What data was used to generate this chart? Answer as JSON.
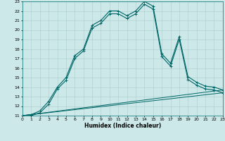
{
  "xlabel": "Humidex (Indice chaleur)",
  "bg_color": "#cce8e8",
  "line_color": "#006666",
  "grid_color": "#aacccc",
  "xlim": [
    0,
    23
  ],
  "ylim": [
    11,
    23
  ],
  "xticks": [
    0,
    1,
    2,
    3,
    4,
    5,
    6,
    7,
    8,
    9,
    10,
    11,
    12,
    13,
    14,
    15,
    16,
    17,
    18,
    19,
    20,
    21,
    22,
    23
  ],
  "yticks": [
    11,
    12,
    13,
    14,
    15,
    16,
    17,
    18,
    19,
    20,
    21,
    22,
    23
  ],
  "line1_x": [
    0,
    1,
    2,
    3,
    4,
    5,
    6,
    7,
    8,
    9,
    10,
    11,
    12,
    13,
    14,
    15,
    16,
    17,
    18,
    19,
    20,
    21,
    22,
    23
  ],
  "line1_y": [
    11,
    11.1,
    11.5,
    12.5,
    14.0,
    15.0,
    17.3,
    18.0,
    20.5,
    21.0,
    22.0,
    22.0,
    21.5,
    22.0,
    23.0,
    22.5,
    17.5,
    16.5,
    19.3,
    15.1,
    14.5,
    14.1,
    14.0,
    13.7
  ],
  "line2_x": [
    0,
    1,
    2,
    3,
    4,
    5,
    6,
    7,
    8,
    9,
    10,
    11,
    12,
    13,
    14,
    15,
    16,
    17,
    18,
    19,
    20,
    21,
    22,
    23
  ],
  "line2_y": [
    11,
    11.0,
    11.3,
    12.2,
    13.8,
    14.7,
    17.0,
    17.8,
    20.2,
    20.7,
    21.7,
    21.7,
    21.2,
    21.7,
    22.7,
    22.2,
    17.2,
    16.2,
    19.0,
    14.8,
    14.2,
    13.8,
    13.7,
    13.4
  ],
  "line3_x": [
    0,
    23
  ],
  "line3_y": [
    11,
    13.7
  ],
  "line4_x": [
    0,
    23
  ],
  "line4_y": [
    11,
    13.4
  ]
}
